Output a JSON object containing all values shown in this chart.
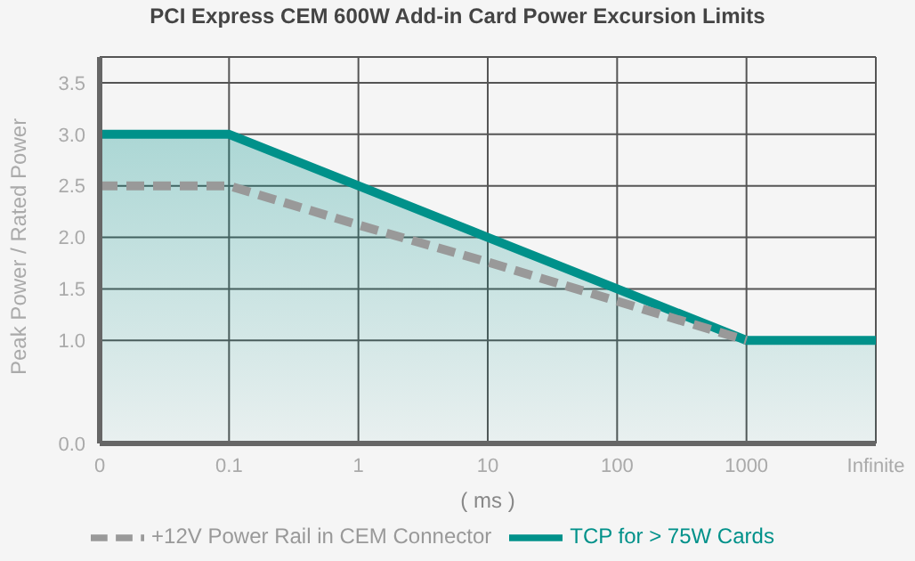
{
  "chart_data": {
    "type": "line",
    "title": "PCI Express CEM 600W Add-in Card Power Excursion Limits",
    "xlabel": "( ms )",
    "ylabel": "Peak Power / Rated Power",
    "categories": [
      "0",
      "0.1",
      "1",
      "10",
      "100",
      "1000",
      "Infinite"
    ],
    "series": [
      {
        "name": "+12V Power Rail in CEM Connector",
        "type": "line",
        "line_style": "dashed",
        "color": "#999999",
        "values": [
          2.5,
          2.5,
          2.12,
          1.76,
          1.38,
          1.0,
          null
        ]
      },
      {
        "name": "TCP for > 75W Cards",
        "type": "area",
        "line_style": "solid",
        "color": "#00918a",
        "values": [
          3.0,
          3.0,
          2.5,
          2.0,
          1.5,
          1.0,
          1.0
        ]
      }
    ],
    "ylim": [
      0,
      3.75
    ],
    "yticks": [
      {
        "value": 0,
        "label": "0.0"
      },
      {
        "value": 1,
        "label": "1.0"
      },
      1.5,
      {
        "value": 2,
        "label": "2.0"
      },
      2.5,
      {
        "value": 3,
        "label": "3.0"
      },
      3.5
    ],
    "grid": true,
    "legend": "bottom",
    "marker": "none"
  }
}
